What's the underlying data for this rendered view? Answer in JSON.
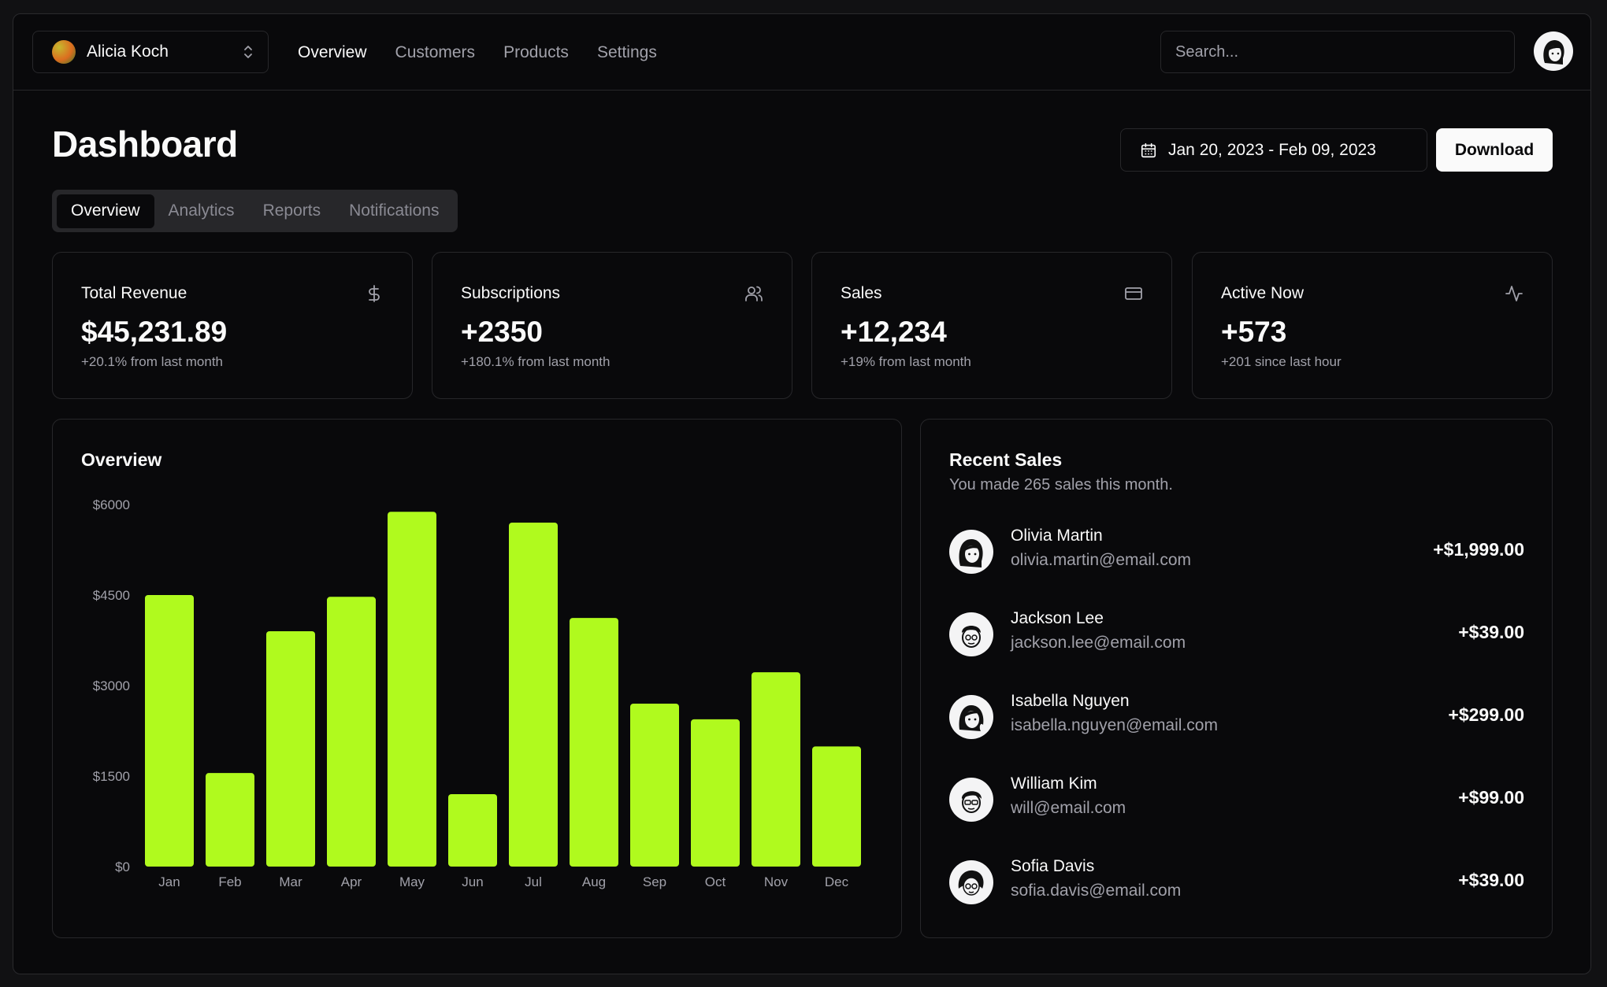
{
  "header": {
    "team_name": "Alicia Koch",
    "nav": [
      "Overview",
      "Customers",
      "Products",
      "Settings"
    ],
    "nav_active": 0,
    "search_placeholder": "Search..."
  },
  "page": {
    "title": "Dashboard",
    "date_range": "Jan 20, 2023 - Feb 09, 2023",
    "download_label": "Download",
    "tabs": [
      "Overview",
      "Analytics",
      "Reports",
      "Notifications"
    ],
    "tab_active": 0
  },
  "stats": [
    {
      "label": "Total Revenue",
      "value": "$45,231.89",
      "sub": "+20.1% from last month",
      "icon": "dollar-icon"
    },
    {
      "label": "Subscriptions",
      "value": "+2350",
      "sub": "+180.1% from last month",
      "icon": "users-icon"
    },
    {
      "label": "Sales",
      "value": "+12,234",
      "sub": "+19% from last month",
      "icon": "credit-card-icon"
    },
    {
      "label": "Active Now",
      "value": "+573",
      "sub": "+201 since last hour",
      "icon": "activity-icon"
    }
  ],
  "overview": {
    "title": "Overview"
  },
  "chart_data": {
    "type": "bar",
    "categories": [
      "Jan",
      "Feb",
      "Mar",
      "Apr",
      "May",
      "Jun",
      "Jul",
      "Aug",
      "Sep",
      "Oct",
      "Nov",
      "Dec"
    ],
    "values": [
      4500,
      1550,
      3900,
      4470,
      5880,
      1200,
      5700,
      4120,
      2700,
      2440,
      3220,
      1990
    ],
    "yticks": [
      "$0",
      "$1500",
      "$3000",
      "$4500",
      "$6000"
    ],
    "ylim": [
      0,
      6000
    ],
    "bar_color": "#b0fa1e"
  },
  "recent_sales": {
    "title": "Recent Sales",
    "description": "You made 265 sales this month.",
    "items": [
      {
        "name": "Olivia Martin",
        "email": "olivia.martin@email.com",
        "amount": "+$1,999.00"
      },
      {
        "name": "Jackson Lee",
        "email": "jackson.lee@email.com",
        "amount": "+$39.00"
      },
      {
        "name": "Isabella Nguyen",
        "email": "isabella.nguyen@email.com",
        "amount": "+$299.00"
      },
      {
        "name": "William Kim",
        "email": "will@email.com",
        "amount": "+$99.00"
      },
      {
        "name": "Sofia Davis",
        "email": "sofia.davis@email.com",
        "amount": "+$39.00"
      }
    ]
  },
  "colors": {
    "background": "#09090b",
    "border": "#27272a",
    "muted": "#a1a1aa",
    "accent": "#b0fa1e"
  }
}
